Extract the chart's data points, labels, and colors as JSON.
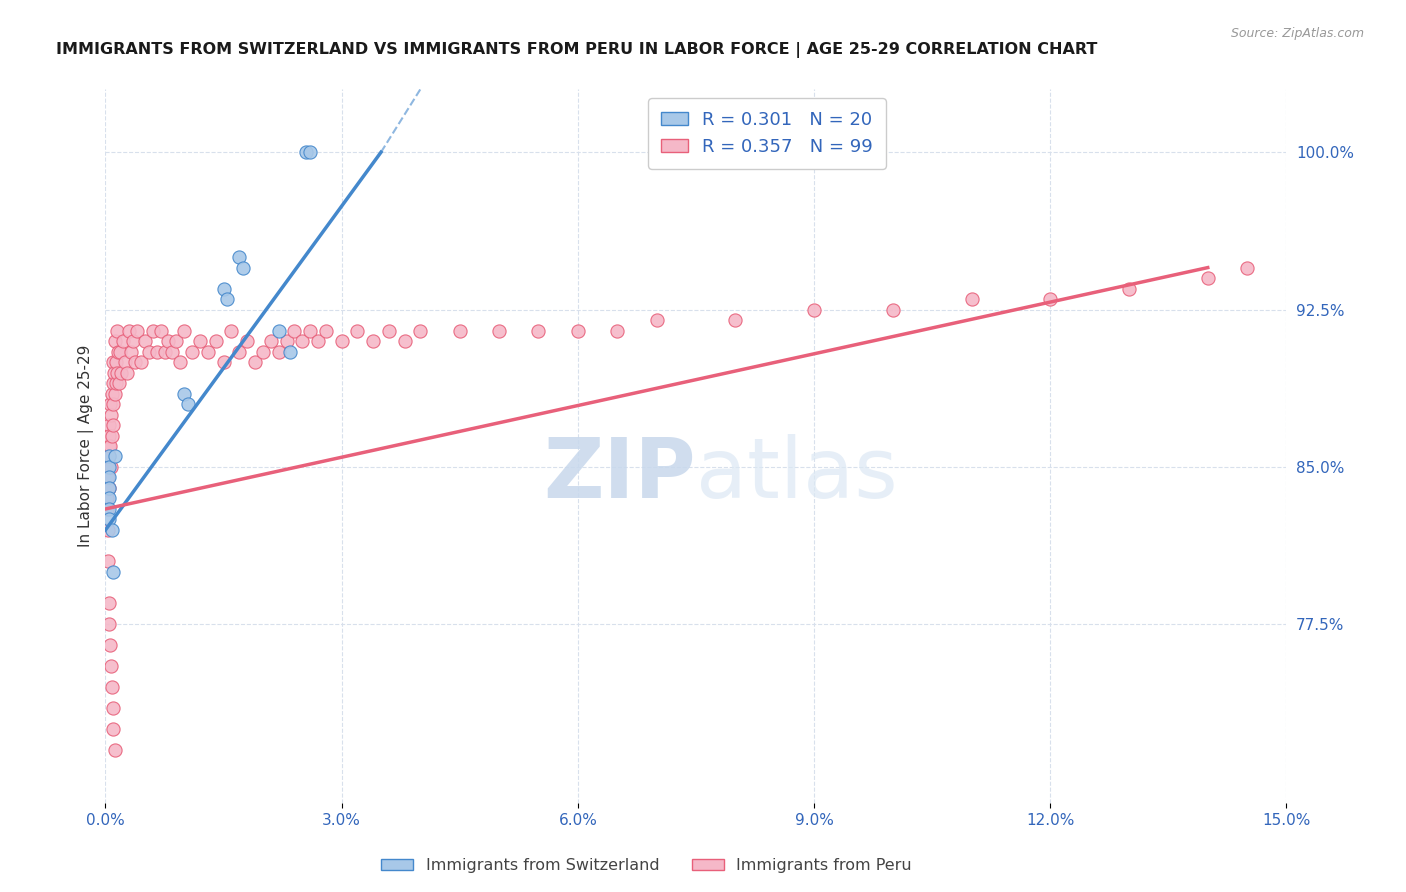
{
  "title": "IMMIGRANTS FROM SWITZERLAND VS IMMIGRANTS FROM PERU IN LABOR FORCE | AGE 25-29 CORRELATION CHART",
  "source": "Source: ZipAtlas.com",
  "ylabel": "In Labor Force | Age 25-29",
  "right_yticks": [
    77.5,
    85.0,
    92.5,
    100.0
  ],
  "right_ytick_labels": [
    "77.5%",
    "85.0%",
    "92.5%",
    "100.0%"
  ],
  "xmin": 0.0,
  "xmax": 15.0,
  "ymin": 69.0,
  "ymax": 103.0,
  "switzerland_color": "#a8c8e8",
  "peru_color": "#f5b8c8",
  "trend_switzerland_color": "#4488cc",
  "trend_peru_color": "#e8607a",
  "axis_color": "#3366bb",
  "grid_color": "#d8e0ec",
  "background_color": "#ffffff",
  "swiss_x": [
    0.05,
    0.05,
    0.05,
    0.05,
    0.05,
    0.05,
    0.05,
    0.08,
    0.1,
    0.12,
    1.0,
    1.05,
    1.5,
    1.55,
    1.7,
    1.75,
    2.2,
    2.35,
    2.55,
    2.6
  ],
  "swiss_y": [
    85.5,
    85.0,
    84.5,
    84.0,
    83.5,
    83.0,
    82.5,
    82.0,
    80.0,
    85.5,
    88.5,
    88.0,
    93.5,
    93.0,
    95.0,
    94.5,
    91.5,
    90.5,
    100.0,
    100.0
  ],
  "peru_x": [
    0.02,
    0.02,
    0.02,
    0.03,
    0.03,
    0.03,
    0.04,
    0.04,
    0.05,
    0.05,
    0.05,
    0.06,
    0.06,
    0.07,
    0.07,
    0.08,
    0.08,
    0.09,
    0.09,
    0.1,
    0.1,
    0.11,
    0.12,
    0.12,
    0.13,
    0.14,
    0.15,
    0.15,
    0.16,
    0.17,
    0.18,
    0.2,
    0.22,
    0.25,
    0.28,
    0.3,
    0.32,
    0.35,
    0.38,
    0.4,
    0.45,
    0.5,
    0.55,
    0.6,
    0.65,
    0.7,
    0.75,
    0.8,
    0.85,
    0.9,
    0.95,
    1.0,
    1.1,
    1.2,
    1.3,
    1.4,
    1.5,
    1.6,
    1.7,
    1.8,
    1.9,
    2.0,
    2.1,
    2.2,
    2.3,
    2.4,
    2.5,
    2.6,
    2.7,
    2.8,
    3.0,
    3.2,
    3.4,
    3.6,
    3.8,
    4.0,
    4.5,
    5.0,
    5.5,
    6.0,
    6.5,
    7.0,
    8.0,
    9.0,
    10.0,
    11.0,
    12.0,
    13.0,
    14.0,
    14.5,
    0.03,
    0.04,
    0.05,
    0.06,
    0.07,
    0.08,
    0.09,
    0.1,
    0.12
  ],
  "peru_y": [
    84.0,
    83.5,
    83.0,
    85.0,
    84.5,
    82.0,
    86.0,
    85.5,
    87.0,
    86.5,
    84.0,
    88.0,
    86.0,
    87.5,
    85.0,
    88.5,
    86.5,
    89.0,
    87.0,
    90.0,
    88.0,
    89.5,
    91.0,
    88.5,
    90.0,
    89.0,
    91.5,
    89.5,
    90.5,
    89.0,
    90.5,
    89.5,
    91.0,
    90.0,
    89.5,
    91.5,
    90.5,
    91.0,
    90.0,
    91.5,
    90.0,
    91.0,
    90.5,
    91.5,
    90.5,
    91.5,
    90.5,
    91.0,
    90.5,
    91.0,
    90.0,
    91.5,
    90.5,
    91.0,
    90.5,
    91.0,
    90.0,
    91.5,
    90.5,
    91.0,
    90.0,
    90.5,
    91.0,
    90.5,
    91.0,
    91.5,
    91.0,
    91.5,
    91.0,
    91.5,
    91.0,
    91.5,
    91.0,
    91.5,
    91.0,
    91.5,
    91.5,
    91.5,
    91.5,
    91.5,
    91.5,
    92.0,
    92.0,
    92.5,
    92.5,
    93.0,
    93.0,
    93.5,
    94.0,
    94.5,
    80.5,
    78.5,
    77.5,
    76.5,
    75.5,
    74.5,
    73.5,
    72.5,
    71.5
  ]
}
